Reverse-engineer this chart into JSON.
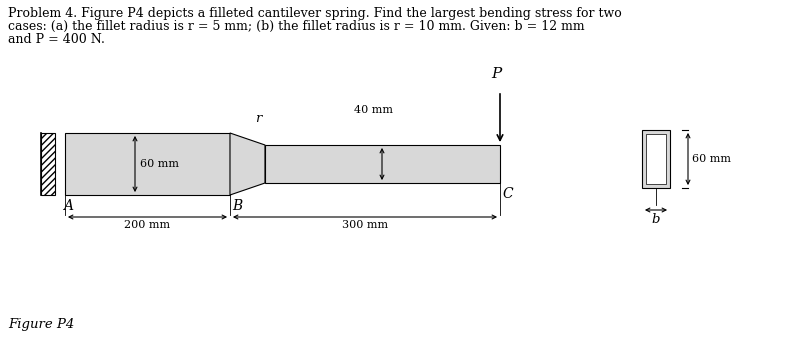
{
  "title_text_line1": "Problem 4. Figure P4 depicts a filleted cantilever spring. Find the largest bending stress for two",
  "title_text_line2": "cases: (a) the fillet radius is r = 5 mm; (b) the fillet radius is r = 10 mm. Given: b = 12 mm",
  "title_text_line3": "and P = 400 N.",
  "figure_label": "Figure P4",
  "bg_color": "#ffffff",
  "beam_fill_color": "#d8d8d8",
  "beam_edge_color": "#000000",
  "label_A": "A",
  "label_B": "B",
  "label_C": "C",
  "label_P": "P",
  "label_r": "r",
  "label_b": "b",
  "dim_60mm_left": "60 mm",
  "dim_40mm": "40 mm",
  "dim_200mm": "200 mm",
  "dim_300mm": "300 mm",
  "dim_60mm_right": "60 mm",
  "text_font_size": 9,
  "label_font_size": 9.5
}
